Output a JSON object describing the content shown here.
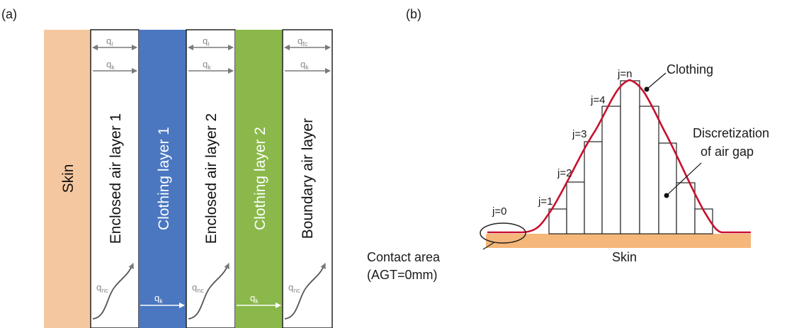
{
  "panel_a": {
    "label": "(a)",
    "layers": [
      {
        "name": "Skin",
        "fill": "#f5c7a0",
        "text_color": "#111111"
      },
      {
        "name": "Enclosed air layer 1",
        "fill": "#ffffff",
        "text_color": "#111111"
      },
      {
        "name": "Clothing layer 1",
        "fill": "#4a77c0",
        "text_color": "#ffffff"
      },
      {
        "name": "Enclosed air layer 2",
        "fill": "#ffffff",
        "text_color": "#111111"
      },
      {
        "name": "Clothing layer 2",
        "fill": "#8ab84a",
        "text_color": "#ffffff"
      },
      {
        "name": "Boundary air layer",
        "fill": "#ffffff",
        "text_color": "#111111"
      }
    ],
    "flux": {
      "q_main": "q",
      "r": "r",
      "k": "k",
      "fc": "fc",
      "nc": "nc"
    }
  },
  "panel_b": {
    "label": "(b)",
    "j_labels": [
      "j=0",
      "j=1",
      "j=2",
      "j=3",
      "j=4",
      "j=n"
    ],
    "clothing_label": "Clothing",
    "discretization_line1": "Discretization",
    "discretization_line2": "of air gap",
    "skin_label": "Skin",
    "contact_line1": "Contact area",
    "contact_line2": "(AGT=0mm)",
    "colors": {
      "curve": "#c8102e",
      "skin": "#f5b77a"
    }
  }
}
